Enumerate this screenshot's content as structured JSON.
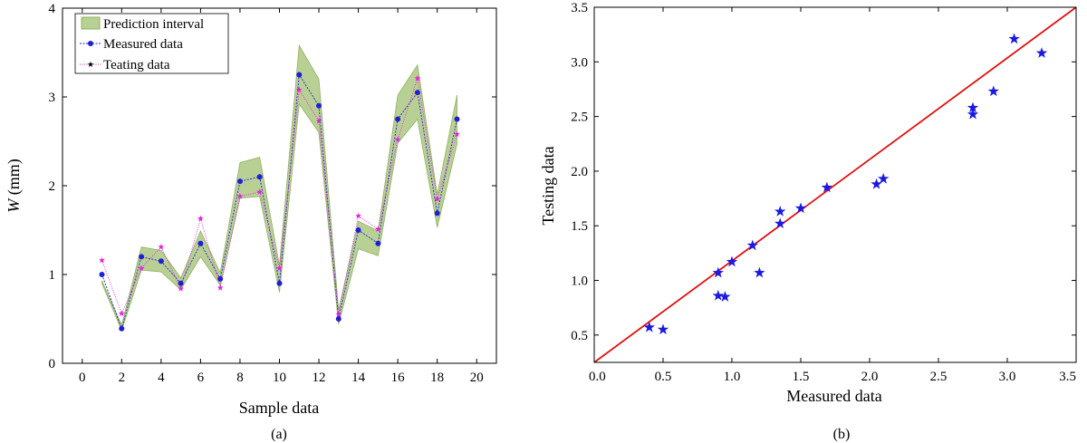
{
  "colors": {
    "band_fill": "#b9d094",
    "band_edge": "#8fb060",
    "measured": "#1f1fd6",
    "testing": "#e81ee0",
    "scatter_marker": "#1a1ae0",
    "fit_line": "#e01010"
  },
  "chart_data": [
    {
      "type": "line",
      "panel_label": "(a)",
      "title": "",
      "xlabel": "Sample data",
      "ylabel_italic": "W",
      "ylabel_rest": " (mm)",
      "xlim": [
        -1,
        21
      ],
      "ylim": [
        0,
        4
      ],
      "xticks": [
        0,
        2,
        4,
        6,
        8,
        10,
        12,
        14,
        16,
        18,
        20
      ],
      "yticks": [
        0,
        1,
        2,
        3,
        4
      ],
      "grid": false,
      "legend_position": "top-left",
      "legend": [
        "Prediction interval",
        "Measured data",
        "Teating data"
      ],
      "x": [
        1,
        2,
        3,
        4,
        5,
        6,
        7,
        8,
        9,
        10,
        11,
        12,
        13,
        14,
        15,
        16,
        17,
        18,
        19
      ],
      "interval_upper": [
        0.93,
        0.43,
        1.31,
        1.27,
        0.96,
        1.49,
        1.02,
        2.26,
        2.32,
        1.1,
        3.58,
        3.2,
        0.6,
        1.6,
        1.49,
        3.02,
        3.36,
        1.9,
        3.02
      ],
      "interval_lower": [
        0.9,
        0.37,
        1.05,
        1.03,
        0.83,
        1.2,
        0.88,
        1.86,
        1.88,
        0.8,
        2.92,
        2.6,
        0.44,
        1.29,
        1.21,
        2.48,
        2.75,
        1.53,
        2.47
      ],
      "series": [
        {
          "name": "Measured data",
          "values": [
            1.0,
            0.39,
            1.2,
            1.15,
            0.9,
            1.35,
            0.95,
            2.05,
            2.1,
            0.9,
            3.25,
            2.9,
            0.5,
            1.5,
            1.35,
            2.75,
            3.05,
            1.69,
            2.75
          ]
        },
        {
          "name": "Teating data",
          "values": [
            1.16,
            0.56,
            1.07,
            1.31,
            0.84,
            1.63,
            0.85,
            1.88,
            1.93,
            1.07,
            3.08,
            2.73,
            0.55,
            1.66,
            1.51,
            2.52,
            3.21,
            1.85,
            2.58
          ]
        }
      ]
    },
    {
      "type": "scatter",
      "panel_label": "(b)",
      "title": "",
      "xlabel": "Measured data",
      "ylabel": "Testing data",
      "xlim": [
        0,
        3.5
      ],
      "ylim": [
        0.25,
        3.5
      ],
      "xticks": [
        "0.0",
        "0.5",
        "1.0",
        "1.5",
        "2.0",
        "2.5",
        "3.0",
        "3.5"
      ],
      "yticks": [
        "0.5",
        "1.0",
        "1.5",
        "2.0",
        "2.5",
        "3.0",
        "3.5"
      ],
      "grid": false,
      "points": [
        [
          0.4,
          0.57
        ],
        [
          0.5,
          0.55
        ],
        [
          0.9,
          1.07
        ],
        [
          0.9,
          0.86
        ],
        [
          0.95,
          0.85
        ],
        [
          1.0,
          1.17
        ],
        [
          1.15,
          1.32
        ],
        [
          1.2,
          1.07
        ],
        [
          1.35,
          1.63
        ],
        [
          1.35,
          1.52
        ],
        [
          1.5,
          1.66
        ],
        [
          1.69,
          1.85
        ],
        [
          2.05,
          1.88
        ],
        [
          2.1,
          1.93
        ],
        [
          2.75,
          2.58
        ],
        [
          2.75,
          2.52
        ],
        [
          2.9,
          2.73
        ],
        [
          3.05,
          3.21
        ],
        [
          3.25,
          3.08
        ]
      ],
      "fit_line": [
        [
          0,
          0.25
        ],
        [
          3.5,
          3.5
        ]
      ]
    }
  ]
}
